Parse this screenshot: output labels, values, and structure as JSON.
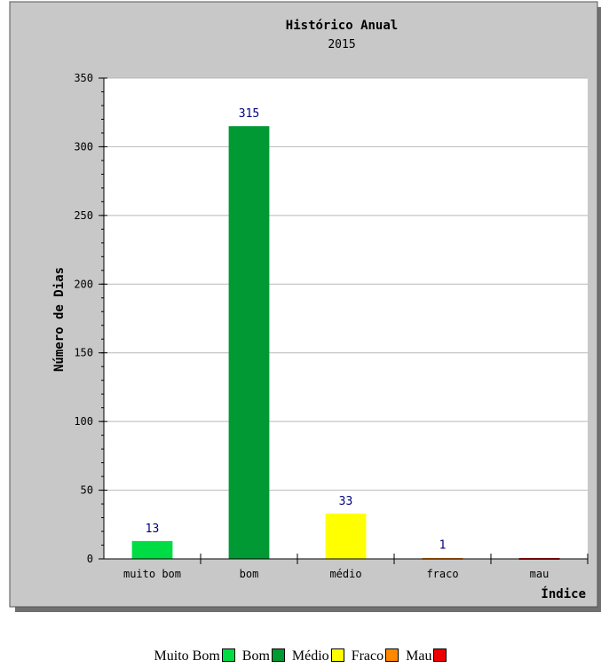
{
  "chart_data": {
    "type": "bar",
    "title": "Histórico Anual",
    "subtitle": "2015",
    "xlabel": "Índice",
    "ylabel": "Número de Dias",
    "categories": [
      "muito bom",
      "bom",
      "médio",
      "fraco",
      "mau"
    ],
    "values": [
      13,
      315,
      33,
      1,
      0
    ],
    "data_labels": [
      "13",
      "315",
      "33",
      "1",
      ""
    ],
    "colors": [
      "#00dd44",
      "#009933",
      "#ffff00",
      "#ff8800",
      "#ee0000"
    ],
    "ylim": [
      0,
      350
    ],
    "yticks": [
      0,
      50,
      100,
      150,
      200,
      250,
      300,
      350
    ],
    "grid": true,
    "legend": "bottom"
  },
  "legend": {
    "items": [
      {
        "label": "Muito Bom",
        "color": "#00dd44"
      },
      {
        "label": "Bom",
        "color": "#009933"
      },
      {
        "label": "Médio",
        "color": "#ffff00"
      },
      {
        "label": "Fraco",
        "color": "#ff8800"
      },
      {
        "label": "Mau",
        "color": "#ee0000"
      }
    ]
  },
  "colors": {
    "frame_bg": "#c8c8c8",
    "plot_bg": "#ffffff",
    "shadow": "#707070",
    "value_label": "#000080"
  }
}
